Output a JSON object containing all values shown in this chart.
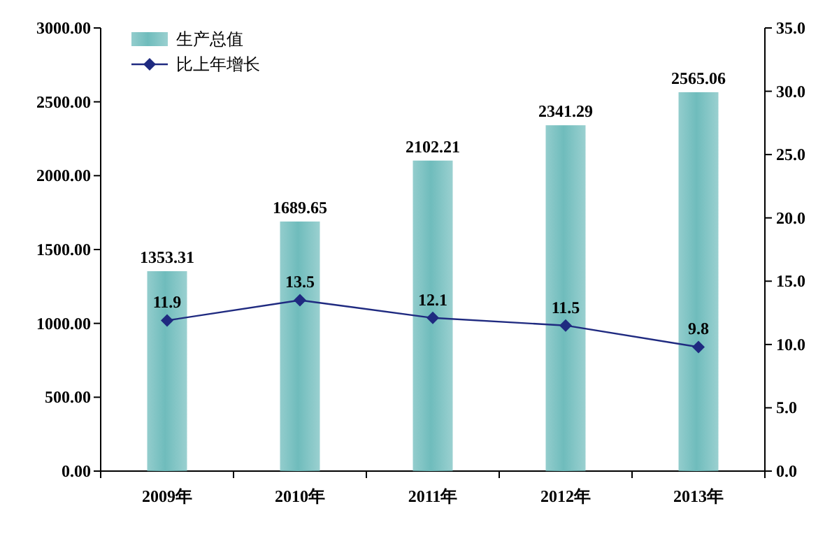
{
  "chart_data": {
    "type": "bar",
    "categories": [
      "2009年",
      "2010年",
      "2011年",
      "2012年",
      "2013年"
    ],
    "series": [
      {
        "name": "生产总值",
        "color": "#6fbcbc",
        "values": [
          1353.31,
          1689.65,
          2102.21,
          2341.29,
          2565.06
        ]
      },
      {
        "name": "比上年增长",
        "type": "line",
        "axis": "y2",
        "color": "#1f2a80",
        "values": [
          11.9,
          13.5,
          12.1,
          11.5,
          9.8
        ]
      }
    ],
    "ylim": [
      0,
      3000
    ],
    "yticks": [
      {
        "value": 0,
        "label": "0.00"
      },
      {
        "value": 500,
        "label": "500.00"
      },
      {
        "value": 1000,
        "label": "1000.00"
      },
      {
        "value": 1500,
        "label": "1500.00"
      },
      {
        "value": 2000,
        "label": "2000.00"
      },
      {
        "value": 2500,
        "label": "2500.00"
      },
      {
        "value": 3000,
        "label": "3000.00"
      }
    ],
    "y2lim": [
      0,
      35
    ],
    "y2ticks": [
      {
        "value": 0,
        "label": "0.0"
      },
      {
        "value": 5,
        "label": "5.0"
      },
      {
        "value": 10,
        "label": "10.0"
      },
      {
        "value": 15,
        "label": "15.0"
      },
      {
        "value": 20,
        "label": "20.0"
      },
      {
        "value": 25,
        "label": "25.0"
      },
      {
        "value": 30,
        "label": "30.0"
      },
      {
        "value": 35,
        "label": "35.0"
      }
    ],
    "data_labels": true,
    "marker": "diamond",
    "line_style": "solid",
    "grid": false,
    "legend": "top left"
  }
}
